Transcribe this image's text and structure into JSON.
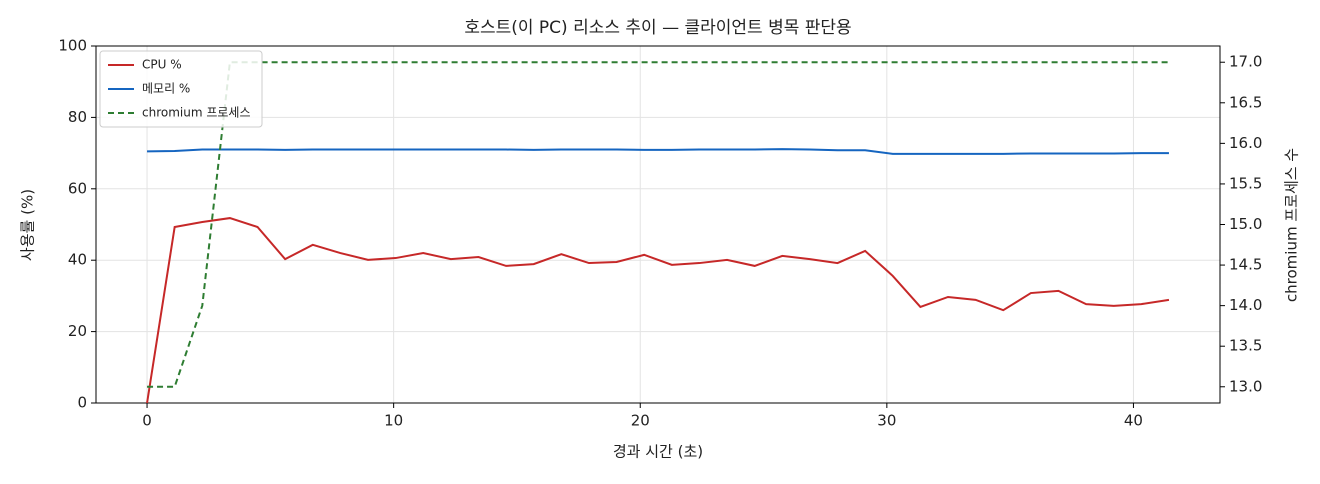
{
  "chart_data": {
    "type": "line",
    "title": "호스트(이 PC) 리소스 추이 — 클라이언트 병목 판단용",
    "xlabel": "경과 시간 (초)",
    "ylabel": "사용률 (%)",
    "y2label": "chromium 프로세스 수",
    "x": [
      0,
      1.12,
      2.24,
      3.36,
      4.48,
      5.6,
      6.72,
      7.84,
      8.96,
      10.08,
      11.2,
      12.32,
      13.44,
      14.56,
      15.68,
      16.8,
      17.92,
      19.04,
      20.16,
      21.28,
      22.4,
      23.52,
      24.64,
      25.76,
      26.88,
      28.0,
      29.12,
      30.24,
      31.36,
      32.48,
      33.6,
      34.72,
      35.84,
      36.96,
      38.08,
      39.2,
      40.32,
      41.44
    ],
    "series": [
      {
        "name": "CPU %",
        "color": "#c62828",
        "dash": false,
        "values": [
          0,
          49.3,
          50.7,
          51.8,
          49.3,
          40.3,
          44.3,
          42.0,
          40.1,
          40.6,
          42.0,
          40.3,
          40.9,
          38.4,
          38.9,
          41.7,
          39.2,
          39.5,
          41.5,
          38.7,
          39.2,
          40.1,
          38.4,
          41.2,
          40.3,
          39.2,
          42.6,
          35.6,
          26.9,
          29.7,
          28.9,
          26.0,
          30.8,
          31.4,
          27.7,
          27.2,
          27.7,
          28.9
        ]
      },
      {
        "name": "메모리 %",
        "color": "#1565c0",
        "dash": false,
        "values": [
          70.5,
          70.6,
          71.0,
          71.0,
          71.0,
          70.9,
          71.0,
          71.0,
          71.0,
          71.0,
          71.0,
          71.0,
          71.0,
          71.0,
          70.9,
          71.0,
          71.0,
          71.0,
          70.9,
          70.9,
          71.0,
          71.0,
          71.0,
          71.1,
          71.0,
          70.8,
          70.8,
          69.8,
          69.8,
          69.8,
          69.8,
          69.8,
          69.9,
          69.9,
          69.9,
          69.9,
          70.0,
          70.0
        ]
      },
      {
        "name": "chromium 프로세스",
        "color": "#2e7d32",
        "dash": true,
        "axis": "y2",
        "values": [
          13,
          13,
          14,
          17,
          17,
          17,
          17,
          17,
          17,
          17,
          17,
          17,
          17,
          17,
          17,
          17,
          17,
          17,
          17,
          17,
          17,
          17,
          17,
          17,
          17,
          17,
          17,
          17,
          17,
          17,
          17,
          17,
          17,
          17,
          17,
          17,
          17,
          17
        ]
      }
    ],
    "xlim": [
      -2.07,
      43.51
    ],
    "xticks": [
      0,
      10,
      20,
      30,
      40
    ],
    "ylim": [
      0,
      100
    ],
    "yticks": [
      0,
      20,
      40,
      60,
      80,
      100
    ],
    "y2lim": [
      12.8,
      17.2
    ],
    "y2ticks": [
      {
        "value": 13,
        "label": "13.0"
      },
      13.5,
      {
        "value": 14,
        "label": "14.0"
      },
      14.5,
      {
        "value": 15,
        "label": "15.0"
      },
      15.5,
      {
        "value": 16,
        "label": "16.0"
      },
      16.5,
      {
        "value": 17,
        "label": "17.0"
      }
    ],
    "grid": true,
    "legend": "upper-left"
  }
}
